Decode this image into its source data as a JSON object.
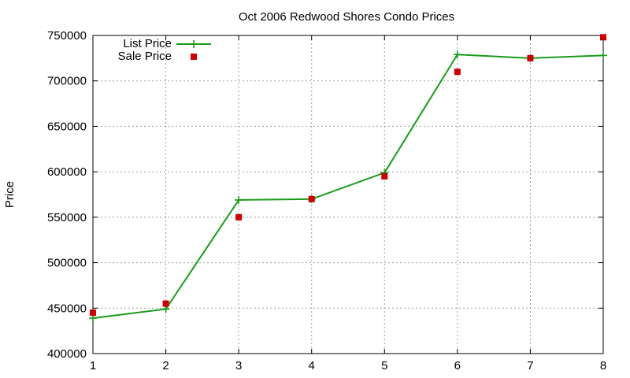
{
  "chart_data": {
    "type": "line",
    "title": "Oct 2006 Redwood Shores Condo Prices",
    "xlabel": "",
    "ylabel": "Price",
    "x": [
      1,
      2,
      3,
      4,
      5,
      6,
      7,
      8
    ],
    "xlim": [
      1,
      8
    ],
    "ylim": [
      400000,
      750000
    ],
    "xticks": [
      "1",
      "2",
      "3",
      "4",
      "5",
      "6",
      "7",
      "8"
    ],
    "yticks": [
      "400000",
      "450000",
      "500000",
      "550000",
      "600000",
      "650000",
      "700000",
      "750000"
    ],
    "ytick_values": [
      400000,
      450000,
      500000,
      550000,
      600000,
      650000,
      700000,
      750000
    ],
    "grid": true,
    "legend_position": "top-left",
    "series": [
      {
        "name": "List Price",
        "style": "line+plus",
        "color": "#1a9a1a",
        "values": [
          439000,
          449000,
          569000,
          570000,
          599000,
          729000,
          725000,
          728000
        ]
      },
      {
        "name": "Sale Price",
        "style": "square",
        "color": "#cc0000",
        "values": [
          445000,
          455000,
          550000,
          570000,
          595000,
          710000,
          725000,
          748000
        ]
      }
    ]
  }
}
